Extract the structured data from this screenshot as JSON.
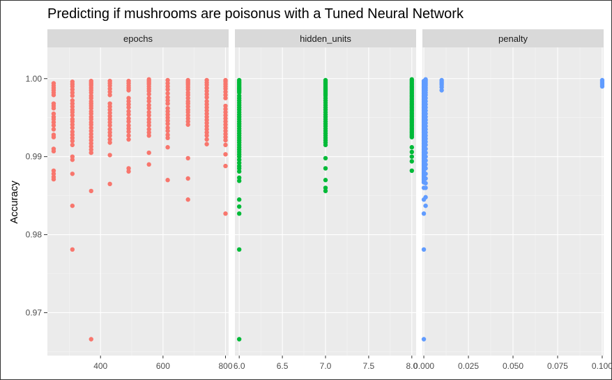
{
  "title": "Predicting if mushrooms are poisonus with a Tuned Neural Network",
  "chart_data": {
    "type": "scatter",
    "title": "Predicting if mushrooms are poisonus with a Tuned Neural Network",
    "ylabel": "Accuracy",
    "xlabel": "",
    "ylim": [
      0.9645,
      1.004
    ],
    "y_ticks": [
      0.97,
      0.98,
      0.99,
      1.0
    ],
    "y_tick_labels": [
      "0.97",
      "0.98",
      "0.99",
      "1.00"
    ],
    "grid": true,
    "legend": "none",
    "panels": [
      {
        "strip": "epochs",
        "color": "#F8766D",
        "xlim": [
          230,
          810
        ],
        "x_ticks": [
          400,
          600,
          800
        ],
        "x_tick_labels": [
          "400",
          "600",
          "800"
        ],
        "points": [
          {
            "x": 250,
            "y": [
              0.9994,
              0.9991,
              0.9988,
              0.9985,
              0.9982,
              0.9979,
              0.9968,
              0.9965,
              0.9962,
              0.9955,
              0.9951,
              0.9948,
              0.9944,
              0.994,
              0.9935,
              0.9928,
              0.9925,
              0.991,
              0.9907,
              0.9882,
              0.9878,
              0.9874,
              0.9871
            ]
          },
          {
            "x": 310,
            "y": [
              0.9996,
              0.9993,
              0.999,
              0.9986,
              0.9982,
              0.9978,
              0.9972,
              0.9968,
              0.9964,
              0.996,
              0.9957,
              0.9953,
              0.9948,
              0.9945,
              0.9941,
              0.9937,
              0.9932,
              0.9928,
              0.9924,
              0.992,
              0.9915,
              0.99,
              0.9896,
              0.9878,
              0.9837,
              0.9781
            ]
          },
          {
            "x": 370,
            "y": [
              0.9997,
              0.9995,
              0.9993,
              0.9991,
              0.9988,
              0.9985,
              0.9982,
              0.9978,
              0.9975,
              0.9971,
              0.9968,
              0.9965,
              0.9962,
              0.9958,
              0.9955,
              0.9951,
              0.9948,
              0.9944,
              0.9941,
              0.9937,
              0.9933,
              0.9929,
              0.9925,
              0.9921,
              0.9917,
              0.9913,
              0.9909,
              0.9905,
              0.9856,
              0.9666
            ]
          },
          {
            "x": 430,
            "y": [
              0.9997,
              0.9994,
              0.9991,
              0.9987,
              0.9983,
              0.9979,
              0.9968,
              0.9964,
              0.996,
              0.9956,
              0.9952,
              0.9948,
              0.9944,
              0.994,
              0.9935,
              0.9931,
              0.9927,
              0.9922,
              0.9918,
              0.9902,
              0.9865
            ]
          },
          {
            "x": 490,
            "y": [
              0.9997,
              0.9994,
              0.9991,
              0.9988,
              0.9985,
              0.9975,
              0.9971,
              0.9967,
              0.9963,
              0.9958,
              0.9954,
              0.9949,
              0.9945,
              0.994,
              0.9936,
              0.9932,
              0.9927,
              0.9922,
              0.9885,
              0.9881
            ]
          },
          {
            "x": 555,
            "y": [
              0.9999,
              0.9997,
              0.9995,
              0.9993,
              0.999,
              0.9987,
              0.9984,
              0.998,
              0.9975,
              0.9971,
              0.9966,
              0.9962,
              0.9957,
              0.9953,
              0.9948,
              0.9944,
              0.994,
              0.9935,
              0.9931,
              0.9927,
              0.9905,
              0.989
            ]
          },
          {
            "x": 615,
            "y": [
              0.9998,
              0.9994,
              0.999,
              0.9986,
              0.9981,
              0.9976,
              0.9972,
              0.9968,
              0.9962,
              0.9958,
              0.9954,
              0.995,
              0.9946,
              0.9942,
              0.9937,
              0.9933,
              0.9928,
              0.9924,
              0.9912,
              0.987
            ]
          },
          {
            "x": 680,
            "y": [
              0.9998,
              0.9996,
              0.9994,
              0.9992,
              0.9989,
              0.9986,
              0.9982,
              0.9979,
              0.9975,
              0.9971,
              0.9968,
              0.9964,
              0.996,
              0.9957,
              0.9953,
              0.9949,
              0.9945,
              0.9941,
              0.9898,
              0.9872,
              0.9845
            ]
          },
          {
            "x": 740,
            "y": [
              0.9998,
              0.9995,
              0.9992,
              0.9988,
              0.9984,
              0.998,
              0.9976,
              0.9971,
              0.9967,
              0.9963,
              0.9959,
              0.9955,
              0.9951,
              0.9947,
              0.9943,
              0.9939,
              0.9935,
              0.9931,
              0.9927,
              0.9922,
              0.9916
            ]
          },
          {
            "x": 800,
            "y": [
              0.9998,
              0.9996,
              0.9993,
              0.999,
              0.9987,
              0.9983,
              0.9979,
              0.9975,
              0.9965,
              0.9961,
              0.9957,
              0.9953,
              0.9949,
              0.9945,
              0.9941,
              0.9937,
              0.9933,
              0.9929,
              0.9925,
              0.9921,
              0.9915,
              0.9903,
              0.9888,
              0.9827
            ]
          }
        ]
      },
      {
        "strip": "hidden_units",
        "color": "#00BA38",
        "xlim": [
          5.95,
          8.05
        ],
        "x_ticks": [
          6.0,
          6.5,
          7.0,
          7.5,
          8.0
        ],
        "x_tick_labels": [
          "6.0",
          "6.5",
          "7.0",
          "7.5",
          "8.0"
        ],
        "points": [
          {
            "x": 6,
            "y": [
              0.9998,
              0.9996,
              0.9994,
              0.9992,
              0.999,
              0.9988,
              0.9986,
              0.9984,
              0.9982,
              0.9978,
              0.9975,
              0.9972,
              0.9969,
              0.9966,
              0.9963,
              0.996,
              0.9957,
              0.9954,
              0.9951,
              0.9948,
              0.9945,
              0.9942,
              0.9939,
              0.9936,
              0.9933,
              0.993,
              0.9927,
              0.9924,
              0.9921,
              0.9918,
              0.9915,
              0.9912,
              0.9909,
              0.9906,
              0.9903,
              0.99,
              0.9896,
              0.9892,
              0.9888,
              0.9885,
              0.9881,
              0.9873,
              0.9869,
              0.9845,
              0.9836,
              0.9827,
              0.9781,
              0.9666
            ]
          },
          {
            "x": 7,
            "y": [
              0.9998,
              0.9996,
              0.9994,
              0.9992,
              0.999,
              0.9988,
              0.9986,
              0.9984,
              0.9982,
              0.998,
              0.9978,
              0.9975,
              0.9972,
              0.9969,
              0.9966,
              0.9963,
              0.996,
              0.9957,
              0.9954,
              0.9951,
              0.9948,
              0.9945,
              0.9942,
              0.9939,
              0.9936,
              0.9933,
              0.993,
              0.9927,
              0.9924,
              0.9921,
              0.9918,
              0.9915,
              0.9898,
              0.9885,
              0.987,
              0.986,
              0.9856
            ]
          },
          {
            "x": 8,
            "y": [
              0.9999,
              0.9997,
              0.9995,
              0.9993,
              0.9991,
              0.9989,
              0.9987,
              0.9985,
              0.9983,
              0.9981,
              0.9979,
              0.9977,
              0.9975,
              0.9973,
              0.9971,
              0.9969,
              0.9967,
              0.9965,
              0.9963,
              0.9961,
              0.9959,
              0.9957,
              0.9955,
              0.9953,
              0.9951,
              0.9949,
              0.9947,
              0.9945,
              0.9943,
              0.9941,
              0.9939,
              0.9937,
              0.9935,
              0.9933,
              0.9931,
              0.9929,
              0.9927,
              0.9925,
              0.9912,
              0.9906,
              0.99,
              0.9894,
              0.9882
            ]
          }
        ]
      },
      {
        "strip": "penalty",
        "color": "#619CFF",
        "xlim": [
          -0.0008,
          0.1008
        ],
        "x_ticks": [
          0.0,
          0.025,
          0.05,
          0.075,
          0.1
        ],
        "x_tick_labels": [
          "0.000",
          "0.025",
          "0.050",
          "0.075",
          "0.100"
        ],
        "points": [
          {
            "x": 0.0,
            "y": [
              0.9997,
              0.9995,
              0.9993,
              0.9991,
              0.9989,
              0.9987,
              0.9985,
              0.9983,
              0.9981,
              0.9979,
              0.9977,
              0.9975,
              0.9973,
              0.9971,
              0.9969,
              0.9967,
              0.9965,
              0.9963,
              0.9961,
              0.9959,
              0.9957,
              0.9955,
              0.9953,
              0.9951,
              0.9949,
              0.9947,
              0.9945,
              0.9943,
              0.9941,
              0.9939,
              0.9937,
              0.9935,
              0.9933,
              0.9931,
              0.9929,
              0.9927,
              0.9925,
              0.9923,
              0.9921,
              0.9919,
              0.9917,
              0.9915,
              0.9913,
              0.9911,
              0.9909,
              0.9907,
              0.9905,
              0.9903,
              0.9901,
              0.9899,
              0.9897,
              0.9895,
              0.9893,
              0.9891,
              0.9889,
              0.9887,
              0.9885,
              0.9883,
              0.9881,
              0.9879,
              0.9877,
              0.9875,
              0.9873,
              0.9871,
              0.9869,
              0.9867,
              0.986,
              0.9845,
              0.9827,
              0.9781,
              0.9666
            ]
          },
          {
            "x": 0.001,
            "y": [
              0.9999,
              0.9997,
              0.9995,
              0.9993,
              0.9991,
              0.9988,
              0.9985,
              0.9982,
              0.9979,
              0.9975,
              0.9971,
              0.9967,
              0.9963,
              0.9959,
              0.9955,
              0.9951,
              0.9947,
              0.9943,
              0.9939,
              0.9935,
              0.9931,
              0.9927,
              0.9923,
              0.9919,
              0.9915,
              0.991,
              0.9905,
              0.99,
              0.9895,
              0.989,
              0.9885,
              0.9878,
              0.9872,
              0.9866,
              0.986,
              0.9848,
              0.9837
            ]
          },
          {
            "x": 0.01,
            "y": [
              0.9998,
              0.9996,
              0.9994,
              0.9992,
              0.9989,
              0.9985
            ]
          },
          {
            "x": 0.1,
            "y": [
              0.9998,
              0.9996,
              0.9994,
              0.9992,
              0.999
            ]
          }
        ]
      }
    ]
  }
}
